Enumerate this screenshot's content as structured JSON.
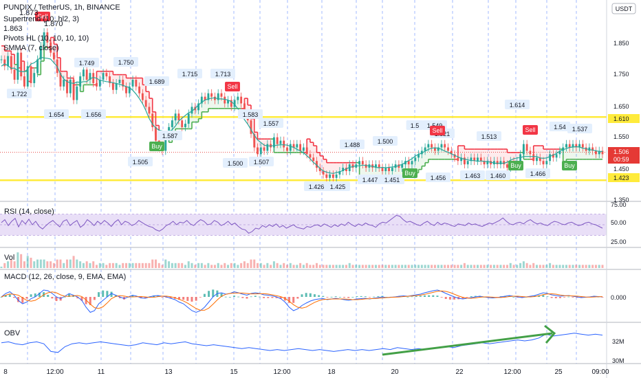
{
  "header": {
    "symbol_line": "PUNDIX / TetherUS, 1h, BINANCE",
    "indicator_1": "Supertrend (10, hl2, 3)",
    "indicator_2": "Pivots HL (10, 10, 10, 10)",
    "indicator_3": "SMMA (7, close)",
    "ind_val_a": "1.863",
    "ind_val_b": "1.870",
    "ind_val_c": "1.873",
    "currency_badge": "USDT"
  },
  "panes": {
    "rsi_label": "RSI (14, close)",
    "vol_label": "Vol",
    "macd_label": "MACD (12, 26, close, 9, EMA, EMA)",
    "obv_label": "OBV"
  },
  "price_axis": {
    "ticks": [
      "1.850",
      "1.750",
      "1.650",
      "1.550",
      "1.450",
      "1.350"
    ],
    "current_price": "1.506",
    "countdown": "00:59",
    "level_high": "1.610",
    "level_low": "1.423"
  },
  "rsi_axis": {
    "ticks": [
      "75.00",
      "50.00",
      "25.00"
    ]
  },
  "macd_axis": {
    "ticks": [
      "0.000"
    ]
  },
  "obv_axis": {
    "ticks": [
      "32M",
      "30M"
    ]
  },
  "time_axis": {
    "labels": [
      "8",
      "12:00",
      "11",
      "13",
      "15",
      "12:00",
      "18",
      "20",
      "22",
      "12:00",
      "25",
      "09:00"
    ]
  },
  "colors": {
    "level": "#ffeb3b",
    "supertrend_up": "#4caf50",
    "supertrend_down": "#f23645",
    "rsi": "#7e57c2",
    "rsi_band": "#e9dff7",
    "macd": "#2962ff",
    "signal": "#ff6d00",
    "obv": "#2962ff",
    "trend_arrow": "#43a047"
  },
  "chart_data": {
    "type": "line",
    "xlabel": "",
    "ylabel": "",
    "ylim": [
      1.33,
      1.92
    ],
    "levels": [
      1.61,
      1.423
    ],
    "pivots": [
      {
        "label": "1.722",
        "value": 1.722
      },
      {
        "label": "1.654",
        "value": 1.654
      },
      {
        "label": "1.749",
        "value": 1.749
      },
      {
        "label": "1.656",
        "value": 1.656
      },
      {
        "label": "1.750",
        "value": 1.75
      },
      {
        "label": "1.689",
        "value": 1.689
      },
      {
        "label": "1.505",
        "value": 1.505
      },
      {
        "label": "1.587",
        "value": 1.587
      },
      {
        "label": "1.715",
        "value": 1.715
      },
      {
        "label": "1.713",
        "value": 1.713
      },
      {
        "label": "1.583",
        "value": 1.583
      },
      {
        "label": "1.500",
        "value": 1.5
      },
      {
        "label": "1.507",
        "value": 1.507
      },
      {
        "label": "1.557",
        "value": 1.557
      },
      {
        "label": "1.426",
        "value": 1.426
      },
      {
        "label": "1.425",
        "value": 1.425
      },
      {
        "label": "1.488",
        "value": 1.488
      },
      {
        "label": "1.447",
        "value": 1.447
      },
      {
        "label": "1.451",
        "value": 1.451
      },
      {
        "label": "1.500",
        "value": 1.5
      },
      {
        "label": "1.5",
        "value": 1.54
      },
      {
        "label": "1.549",
        "value": 1.549
      },
      {
        "label": "1.456",
        "value": 1.456
      },
      {
        "label": "1.521",
        "value": 1.521
      },
      {
        "label": "1.463",
        "value": 1.463
      },
      {
        "label": "1.513",
        "value": 1.513
      },
      {
        "label": "1.460",
        "value": 1.46
      },
      {
        "label": "1.614",
        "value": 1.614
      },
      {
        "label": "1.466",
        "value": 1.466
      },
      {
        "label": "1.54",
        "value": 1.54
      },
      {
        "label": "1.537",
        "value": 1.537
      }
    ],
    "signals": [
      {
        "label": "Sell"
      },
      {
        "label": "Buy"
      },
      {
        "label": "Sell"
      },
      {
        "label": "Buy"
      },
      {
        "label": "Sell"
      },
      {
        "label": "Buy"
      },
      {
        "label": "Sell"
      },
      {
        "label": "Buy"
      },
      {
        "label": "Buy"
      }
    ],
    "series": [
      {
        "values": [
          1.78,
          1.76,
          1.79,
          1.75,
          1.72,
          1.8,
          1.73,
          1.7,
          1.76,
          1.71,
          1.74,
          1.78,
          1.82,
          1.86,
          1.83,
          1.8,
          1.78,
          1.74,
          1.7,
          1.72,
          1.68,
          1.72,
          1.66,
          1.7,
          1.73,
          1.75,
          1.72,
          1.74,
          1.71,
          1.7,
          1.72,
          1.74,
          1.73,
          1.71,
          1.69,
          1.71,
          1.72,
          1.7,
          1.68,
          1.7,
          1.72,
          1.7,
          1.68,
          1.66,
          1.64,
          1.62,
          1.58,
          1.54,
          1.52,
          1.51,
          1.55,
          1.58,
          1.6,
          1.62,
          1.6,
          1.58,
          1.59,
          1.62,
          1.64,
          1.63,
          1.65,
          1.67,
          1.66,
          1.68,
          1.67,
          1.66,
          1.68,
          1.67,
          1.65,
          1.66,
          1.64,
          1.66,
          1.67,
          1.65,
          1.62,
          1.6,
          1.56,
          1.52,
          1.5,
          1.52,
          1.51,
          1.53,
          1.52,
          1.55,
          1.53,
          1.54,
          1.52,
          1.51,
          1.53,
          1.52,
          1.53,
          1.51,
          1.52,
          1.5,
          1.49,
          1.48,
          1.46,
          1.45,
          1.44,
          1.43,
          1.44,
          1.43,
          1.44,
          1.45,
          1.46,
          1.45,
          1.47,
          1.46,
          1.47,
          1.48,
          1.47,
          1.46,
          1.47,
          1.46,
          1.47,
          1.46,
          1.45,
          1.46,
          1.45,
          1.46,
          1.47,
          1.46,
          1.47,
          1.48,
          1.47,
          1.48,
          1.49,
          1.5,
          1.51,
          1.52,
          1.53,
          1.52,
          1.51,
          1.52,
          1.53,
          1.52,
          1.51,
          1.5,
          1.49,
          1.48,
          1.49,
          1.47,
          1.48,
          1.49,
          1.48,
          1.49,
          1.48,
          1.47,
          1.48,
          1.47,
          1.48,
          1.47,
          1.48,
          1.47,
          1.46,
          1.48,
          1.47,
          1.48,
          1.5,
          1.53,
          1.51,
          1.5,
          1.48,
          1.49,
          1.48,
          1.47,
          1.48,
          1.5,
          1.49,
          1.5,
          1.51,
          1.52,
          1.53,
          1.52,
          1.53,
          1.52,
          1.53,
          1.52,
          1.51,
          1.52,
          1.51,
          1.5,
          1.51,
          1.5
        ],
        "color": "#26a69a"
      }
    ],
    "rsi": [
      55,
      62,
      48,
      58,
      65,
      45,
      60,
      52,
      63,
      50,
      58,
      46,
      40,
      48,
      55,
      60,
      52,
      45,
      58,
      62,
      48,
      55,
      60,
      44,
      50,
      62,
      56,
      48,
      58,
      52,
      60,
      54,
      46,
      56,
      62,
      50,
      58,
      55,
      48,
      52,
      60,
      55,
      50,
      46,
      44,
      38,
      35,
      40,
      48,
      52,
      58,
      50,
      56,
      54,
      60,
      52,
      48,
      56,
      62,
      58,
      50,
      52,
      60,
      56,
      48,
      52,
      58,
      50,
      54,
      46,
      40,
      38,
      30,
      34,
      42,
      40,
      48,
      44,
      50,
      46,
      52,
      44,
      48,
      42,
      46,
      50,
      44,
      42,
      40,
      46,
      44,
      48,
      50,
      46,
      52,
      48,
      44,
      50,
      46,
      52,
      48,
      56,
      50,
      46,
      52,
      48,
      54,
      50,
      48,
      44,
      52,
      56,
      54,
      60,
      66,
      72,
      70,
      62,
      56,
      58,
      54,
      50,
      48,
      54,
      58,
      52,
      48,
      56,
      50,
      54,
      52,
      48,
      46,
      52,
      50,
      48,
      54,
      50,
      52,
      48,
      46,
      50,
      54,
      52,
      56,
      60,
      66,
      58,
      52,
      50,
      54,
      56,
      52,
      58,
      62,
      56,
      52,
      54,
      50,
      48,
      54,
      58,
      56,
      52,
      50,
      54,
      56,
      52,
      48,
      50,
      54,
      56,
      52,
      50,
      46,
      42
    ],
    "macd": [
      0.0,
      0.01,
      0.015,
      0.005,
      -0.01,
      -0.02,
      -0.015,
      -0.005,
      0.0,
      0.01,
      0.02,
      0.018,
      0.01,
      0.0,
      -0.005,
      0.002,
      0.01,
      0.005,
      0.0,
      -0.01,
      -0.03,
      -0.045,
      -0.04,
      -0.02,
      -0.01,
      0.0,
      0.01,
      0.005,
      0.0,
      -0.005,
      0.0,
      0.005,
      0.002,
      -0.003,
      -0.004,
      0.0,
      0.003,
      0.004,
      0.002,
      0.0,
      -0.004,
      -0.008,
      -0.015,
      -0.02,
      -0.03,
      -0.04,
      -0.045,
      -0.04,
      -0.03,
      -0.015,
      0.0,
      0.01,
      0.012,
      0.008,
      0.01,
      0.015,
      0.012,
      0.008,
      0.005,
      0.01,
      0.012,
      0.01,
      0.006,
      0.005,
      0.003,
      0.0,
      -0.005,
      -0.015,
      -0.03,
      -0.04,
      -0.035,
      -0.025,
      -0.018,
      -0.012,
      -0.008,
      -0.006,
      -0.005,
      -0.008,
      -0.006,
      -0.004,
      -0.006,
      -0.008,
      -0.01,
      -0.008,
      -0.006,
      -0.005,
      -0.004,
      -0.006,
      -0.004,
      -0.002,
      0.0,
      -0.002,
      -0.001,
      0.0,
      0.002,
      0.003,
      0.002,
      0.004,
      0.006,
      0.008,
      0.012,
      0.015,
      0.018,
      0.02,
      0.016,
      0.01,
      0.005,
      0.0,
      -0.004,
      -0.006,
      -0.004,
      -0.002,
      0.0,
      0.002,
      0.0,
      -0.002,
      -0.003,
      -0.002,
      0.0,
      0.002,
      0.004,
      0.002,
      0.0,
      -0.002,
      0.0,
      0.002,
      0.004,
      0.008,
      0.012,
      0.01,
      0.006,
      0.004,
      0.002,
      0.003,
      0.004,
      0.002,
      0.0,
      -0.002,
      -0.001,
      0.0,
      0.002,
      0.001,
      0.0
    ],
    "obv": [
      31.8,
      31.9,
      31.7,
      31.6,
      31.8,
      31.9,
      31.7,
      30.9,
      30.8,
      31.4,
      31.7,
      31.8,
      31.7,
      31.8,
      31.9,
      31.8,
      31.7,
      31.6,
      31.5,
      31.6,
      31.8,
      31.7,
      31.6,
      31.8,
      31.7,
      31.8,
      31.9,
      31.7,
      31.6,
      31.5,
      31.6,
      31.5,
      31.4,
      31.3,
      31.2,
      31.3,
      31.2,
      31.1,
      31.0,
      31.1,
      31.0,
      31.1,
      31.2,
      31.1,
      31.0,
      31.1,
      31.0,
      30.9,
      31.0,
      31.1,
      31.0,
      31.1,
      31.0,
      31.1,
      31.2,
      31.1,
      31.3,
      31.2,
      31.1,
      31.2,
      31.1,
      31.2,
      31.3,
      31.4,
      31.3,
      31.5,
      31.6,
      31.7,
      31.8,
      31.7,
      31.8,
      31.9,
      32.0,
      32.1,
      32.0,
      32.1,
      32.3,
      32.7,
      32.5,
      32.6,
      32.7,
      32.8,
      32.7,
      32.6,
      32.7,
      32.6
    ]
  }
}
